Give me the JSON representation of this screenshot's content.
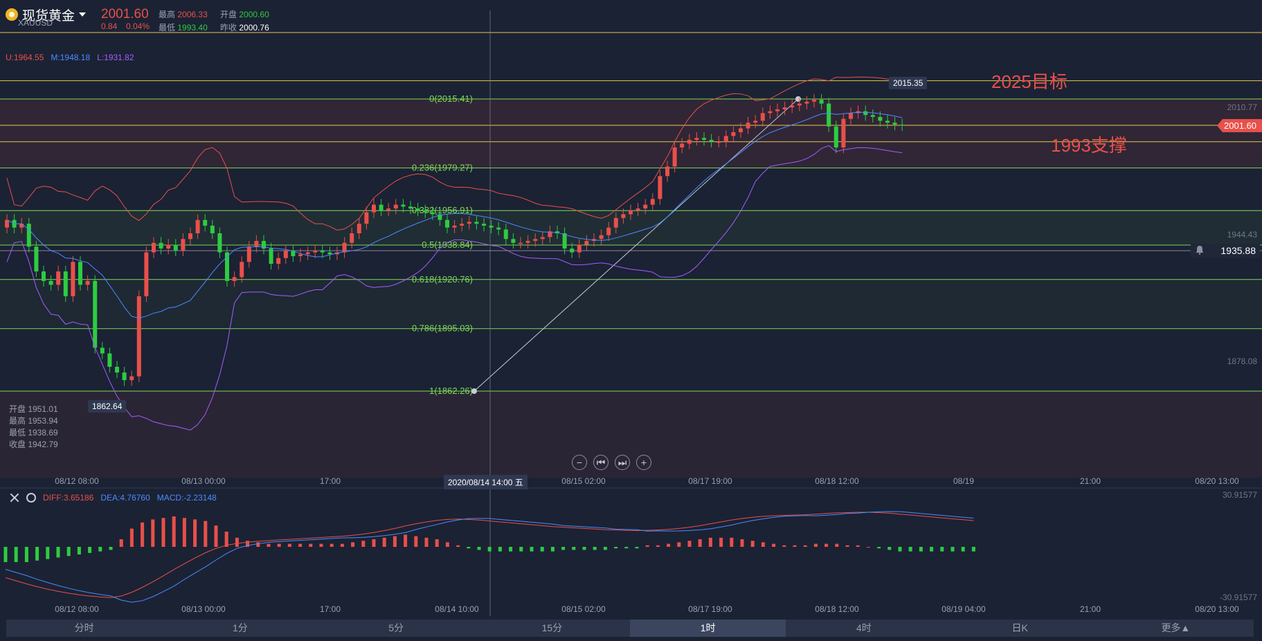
{
  "instrument": {
    "name": "现货黄金",
    "code": "XAUUSD",
    "price": "2001.60",
    "change": "0.84",
    "change_pct": "0.04%"
  },
  "stats": {
    "high_label": "最高",
    "high": "2006.33",
    "open_label": "开盘",
    "open": "2000.60",
    "low_label": "最低",
    "low": "1993.40",
    "prev_close_label": "昨收",
    "prev_close": "2000.76"
  },
  "bollinger": {
    "u": "U:1964.55",
    "m": "M:1948.18",
    "l": "L:1931.82"
  },
  "ohlc_box": {
    "open": "开盘 1951.01",
    "high": "最高 1953.94",
    "low": "最低 1938.69",
    "close": "收盘 1942.79"
  },
  "macd": {
    "diff": "DIFF:3.65186",
    "dea": "DEA:4.76760",
    "macd": "MACD:-2.23148"
  },
  "annotations": {
    "target": "2025目标",
    "support": "1993支撑"
  },
  "price_tags": {
    "high_point": "2015.35",
    "low_point": "1862.64",
    "current": "2001.60",
    "alert": "1935.88"
  },
  "crosshair_date": "2020/08/14 14:00 五",
  "zoom_buttons": [
    "−",
    "⏮",
    "⏭",
    "+"
  ],
  "tabs": [
    {
      "label": "分时"
    },
    {
      "label": "1分"
    },
    {
      "label": "5分"
    },
    {
      "label": "15分"
    },
    {
      "label": "1时",
      "active": true
    },
    {
      "label": "4时"
    },
    {
      "label": "日K"
    },
    {
      "label": "更多▲"
    }
  ],
  "colors": {
    "up": "#e8504a",
    "down": "#2ecc40",
    "fib": "#7ed957",
    "hline": "#e8c84a",
    "upper": "#e8504a",
    "mid": "#4a8cff",
    "lower": "#a65cff"
  },
  "chart_data": {
    "type": "candlestick",
    "y_axis_labels": [
      "2010.77",
      "1944.43",
      "1878.08"
    ],
    "macd_axis_labels": [
      "30.91577",
      "-30.91577"
    ],
    "x_labels": [
      "08/12 08:00",
      "08/13 00:00",
      "17:00",
      "08/14 10:00",
      "08/15 02:00",
      "08/17 19:00",
      "08/18 12:00",
      "08/19 04:00",
      "21:00",
      "08/20 13:00"
    ],
    "main_x_labels": [
      "08/12 08:00",
      "08/13 00:00",
      "17:00",
      "08/",
      "08/15 02:00",
      "08/17 19:00",
      "08/18 12:00",
      "08/19",
      "21:00",
      "08/20 13:00"
    ],
    "fib_levels": [
      {
        "label": "0(2015.41)",
        "price": 2015.41
      },
      {
        "label": "0.236(1979.27)",
        "price": 1979.27
      },
      {
        "label": "0.382(1956.91)",
        "price": 1956.91
      },
      {
        "label": "0.5(1938.84)",
        "price": 1938.84
      },
      {
        "label": "0.618(1920.76)",
        "price": 1920.76
      },
      {
        "label": "0.786(1895.03)",
        "price": 1895.03
      },
      {
        "label": "1(1862.26)",
        "price": 1862.26
      }
    ],
    "horizontal_lines": [
      2025,
      2001.6,
      1993,
      1935.88
    ],
    "close": [
      1952,
      1948,
      1950,
      1938,
      1925,
      1920,
      1918,
      1925,
      1912,
      1930,
      1918,
      1920,
      1885,
      1882,
      1875,
      1872,
      1868,
      1870,
      1912,
      1935,
      1940,
      1937,
      1939,
      1936,
      1942,
      1945,
      1952,
      1949,
      1945,
      1935,
      1920,
      1922,
      1930,
      1938,
      1941,
      1937,
      1929,
      1932,
      1936,
      1933,
      1934,
      1935,
      1936,
      1935,
      1934,
      1935,
      1940,
      1945,
      1950,
      1956,
      1960,
      1957,
      1958,
      1960,
      1959,
      1958,
      1957,
      1956,
      1955,
      1952,
      1948,
      1949,
      1950,
      1951,
      1950,
      1949,
      1948,
      1947,
      1942,
      1940,
      1940,
      1941,
      1942,
      1943,
      1946,
      1945,
      1937,
      1935,
      1939,
      1941,
      1942,
      1944,
      1948,
      1953,
      1955,
      1957,
      1958,
      1960,
      1963,
      1975,
      1980,
      1990,
      1992,
      1994,
      1995,
      1994,
      1993,
      1993,
      1996,
      1998,
      2000,
      2003,
      2004,
      2008,
      2009,
      2010,
      2011,
      2012,
      2013,
      2014,
      2015,
      2013,
      2001,
      1990,
      2005,
      2008,
      2009,
      2007,
      2006,
      2004,
      2003,
      2002,
      2001.6
    ],
    "macd_hist": [
      -10,
      -10,
      -10,
      -9,
      -8,
      -7,
      -6,
      -5,
      -4,
      -3,
      -2,
      5,
      12,
      16,
      18,
      19,
      20,
      19,
      18,
      17,
      14,
      10,
      6,
      4,
      3,
      2,
      2,
      2,
      2,
      2,
      2,
      2,
      2,
      3,
      4,
      5,
      6,
      7,
      8,
      7,
      6,
      5,
      3,
      1,
      -1,
      -2,
      -3,
      -3,
      -3,
      -3,
      -3,
      -3,
      -3,
      -2,
      -2,
      -2,
      -2,
      -2,
      -1,
      -1,
      -1,
      1,
      1,
      2,
      3,
      4,
      5,
      6,
      6,
      6,
      5,
      4,
      3,
      2,
      1,
      1,
      1,
      2,
      2,
      2,
      1,
      1,
      0,
      -1,
      -2,
      -3,
      -3,
      -3,
      -3,
      -3,
      -3,
      -3,
      -3
    ]
  }
}
